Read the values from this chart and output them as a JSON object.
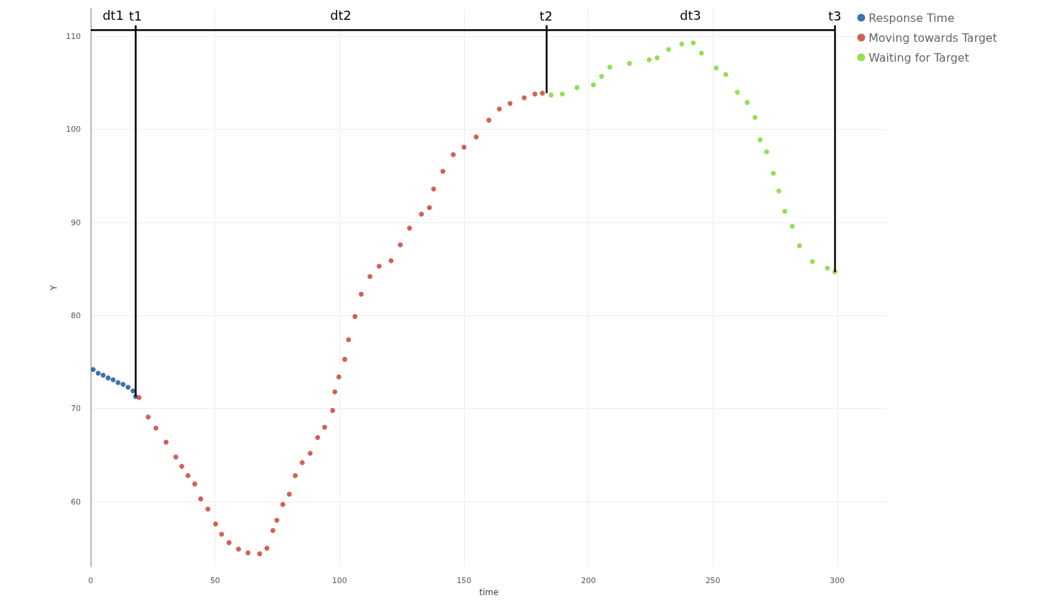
{
  "chart_data": {
    "type": "scatter",
    "xlabel": "time",
    "ylabel": "Y",
    "xlim": [
      0,
      320
    ],
    "ylim": [
      53,
      113
    ],
    "xticks": [
      0,
      50,
      100,
      150,
      200,
      250,
      300
    ],
    "yticks": [
      60,
      70,
      80,
      90,
      100,
      110
    ],
    "grid": true,
    "legend": "top right",
    "marker": "circle",
    "series": [
      {
        "name": "Response Time",
        "color": "#0d4f9a",
        "x": [
          1,
          3,
          5,
          7,
          9,
          11,
          13,
          15,
          17,
          18
        ],
        "values": [
          74.2,
          73.8,
          73.6,
          73.3,
          73.1,
          72.8,
          72.6,
          72.3,
          71.9,
          71.3
        ]
      },
      {
        "name": "Moving towards Target",
        "color": "#c43a2c",
        "x": [
          19.4,
          23.1,
          26.2,
          30.3,
          34.2,
          36.6,
          39.1,
          41.8,
          44.2,
          47.1,
          50.2,
          52.6,
          55.6,
          59.4,
          63.2,
          67.9,
          70.8,
          73.2,
          74.8,
          77.2,
          79.8,
          82.2,
          85.0,
          88.2,
          91.2,
          94.0,
          97.2,
          98.1,
          99.7,
          102.1,
          103.6,
          106.2,
          108.7,
          112.2,
          115.9,
          120.7,
          124.4,
          128.1,
          132.9,
          136.1,
          137.8,
          141.5,
          145.7,
          150.0,
          154.9,
          160.0,
          164.2,
          168.5,
          174.2,
          178.5,
          181.5
        ],
        "values": [
          71.2,
          69.1,
          67.9,
          66.4,
          64.8,
          63.8,
          62.8,
          61.9,
          60.3,
          59.2,
          57.6,
          56.5,
          55.6,
          54.9,
          54.5,
          54.4,
          55.0,
          56.9,
          58.0,
          59.7,
          60.8,
          62.8,
          64.2,
          65.2,
          66.9,
          68.0,
          69.8,
          71.8,
          73.4,
          75.3,
          77.4,
          79.9,
          82.3,
          84.2,
          85.3,
          85.9,
          87.6,
          89.4,
          90.9,
          91.6,
          93.6,
          95.5,
          97.3,
          98.1,
          99.2,
          101.0,
          102.2,
          102.8,
          103.4,
          103.8,
          103.9
        ]
      },
      {
        "name": "Waiting for Target",
        "color": "#7bd62a",
        "x": [
          185.0,
          189.5,
          195.4,
          202.0,
          205.3,
          208.6,
          216.5,
          224.4,
          227.6,
          232.2,
          237.5,
          242.1,
          245.4,
          251.3,
          255.2,
          259.8,
          263.8,
          266.9,
          269.0,
          271.6,
          274.3,
          276.5,
          278.9,
          281.9,
          284.8,
          290.0,
          296.0,
          299.0
        ],
        "values": [
          103.7,
          103.8,
          104.5,
          104.8,
          105.7,
          106.7,
          107.1,
          107.5,
          107.7,
          108.6,
          109.2,
          109.3,
          108.2,
          106.6,
          105.9,
          104.0,
          102.9,
          101.3,
          98.9,
          97.6,
          95.3,
          93.4,
          91.2,
          89.6,
          87.5,
          85.8,
          85.1,
          84.7
        ]
      }
    ],
    "ref_lines": [
      {
        "axis": "x",
        "value": 18,
        "label": "t1",
        "color": "#000000"
      },
      {
        "axis": "x",
        "value": 183,
        "label": "t2",
        "color": "#000000"
      },
      {
        "axis": "x",
        "value": 299,
        "label": "t3",
        "color": "#000000"
      }
    ],
    "annotations": [
      "dt1",
      "dt2",
      "dt3"
    ]
  }
}
